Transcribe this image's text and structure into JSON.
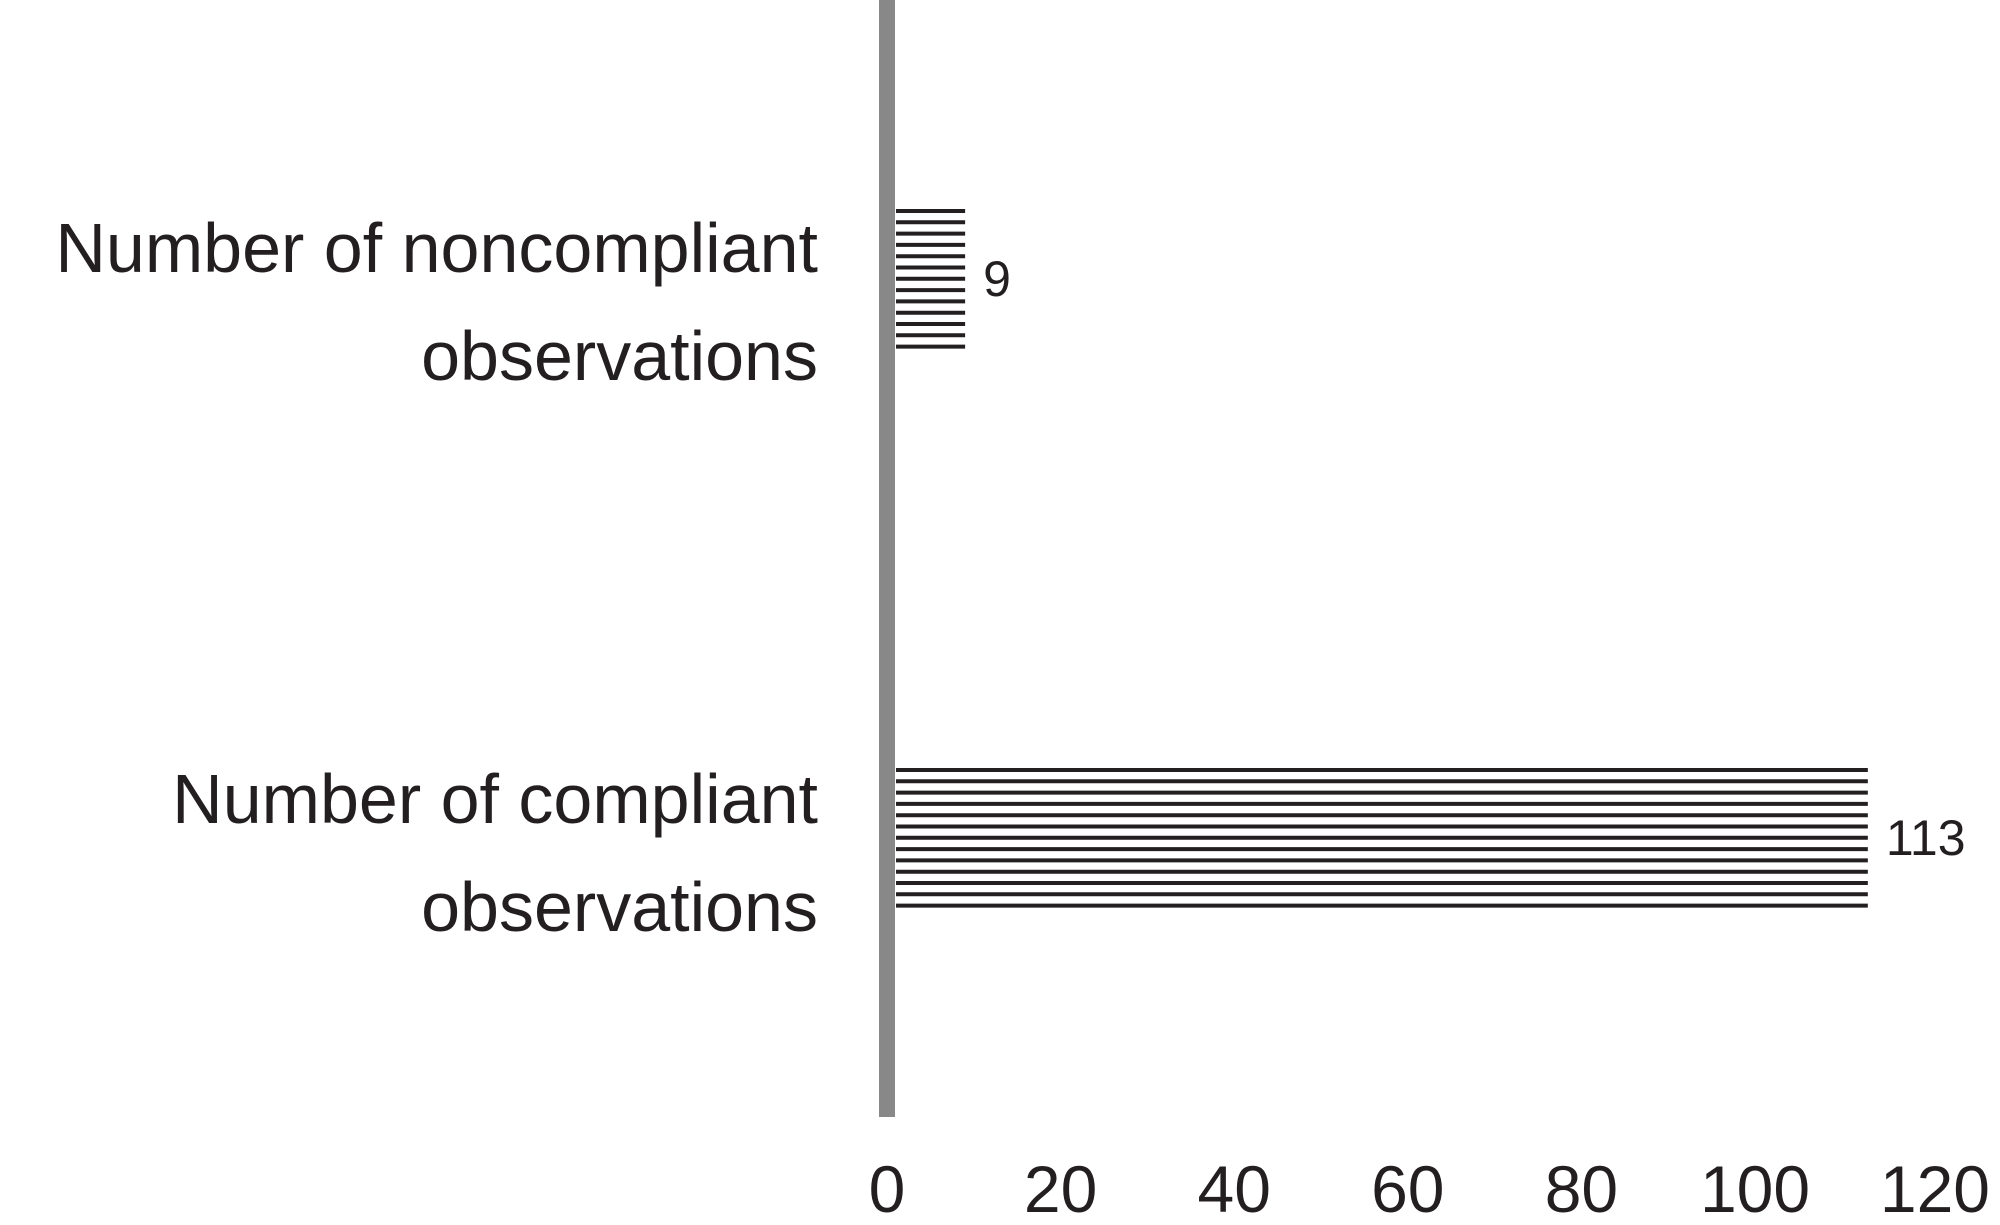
{
  "chart_data": {
    "type": "bar",
    "orientation": "horizontal",
    "title": "",
    "xlabel": "",
    "ylabel": "",
    "xlim": [
      0,
      120
    ],
    "xticks": [
      0,
      20,
      40,
      60,
      80,
      100,
      120
    ],
    "grid": false,
    "legend": "none",
    "categories": [
      {
        "label_lines": [
          "Number of noncompliant",
          "observations"
        ],
        "value": 9,
        "value_label": "9"
      },
      {
        "label_lines": [
          "Number of compliant",
          "observations"
        ],
        "value": 113,
        "value_label": "113"
      }
    ],
    "colors": {
      "axis": "#888888",
      "bar_stripes": "#231f20",
      "text": "#231f20"
    },
    "bar_fill": "horizontal-stripes"
  }
}
